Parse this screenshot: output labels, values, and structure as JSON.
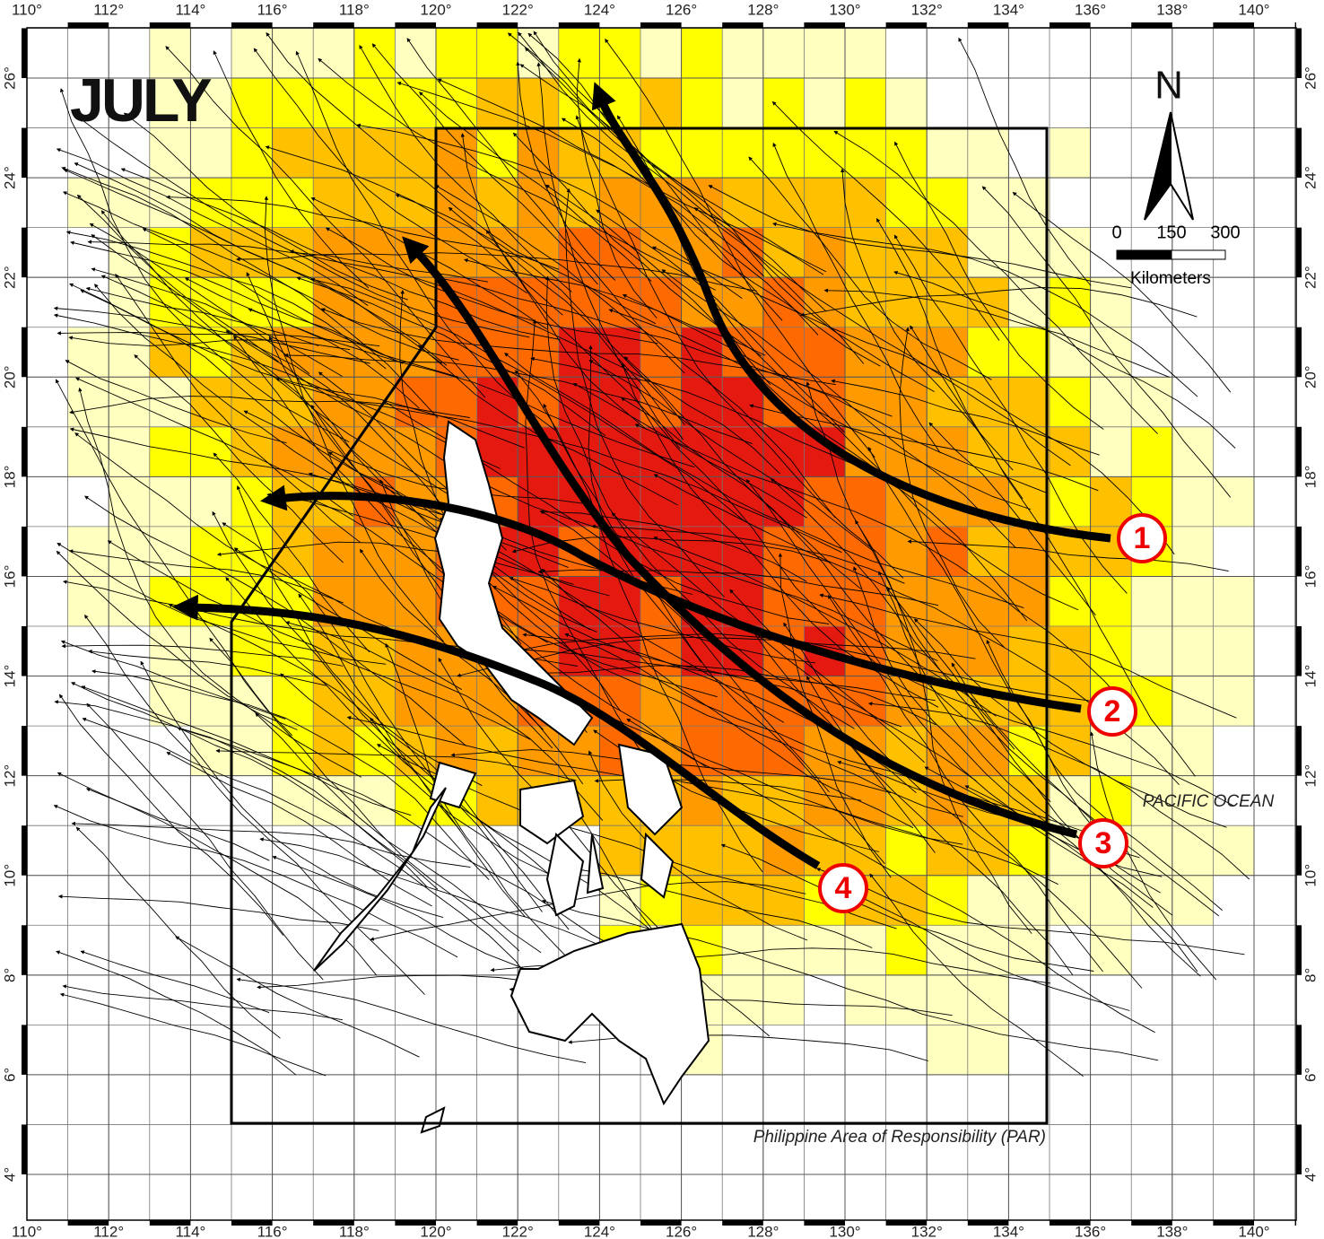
{
  "title": "JULY",
  "north": "N",
  "scale_bar": {
    "labels": [
      "0",
      "150",
      "300"
    ],
    "unit": "Kilometers"
  },
  "ocean_label": "PACIFIC OCEAN",
  "par_label": "Philippine Area of Responsibility (PAR)",
  "track_labels": [
    "1",
    "2",
    "3",
    "4"
  ],
  "lon_ticks": [
    {
      "value": 110,
      "label": "110°"
    },
    {
      "value": 112,
      "label": "112°"
    },
    {
      "value": 114,
      "label": "114°"
    },
    {
      "value": 116,
      "label": "116°"
    },
    {
      "value": 118,
      "label": "118°"
    },
    {
      "value": 120,
      "label": "120°"
    },
    {
      "value": 122,
      "label": "122°"
    },
    {
      "value": 124,
      "label": "124°"
    },
    {
      "value": 126,
      "label": "126°"
    },
    {
      "value": 128,
      "label": "128°"
    },
    {
      "value": 130,
      "label": "130°"
    },
    {
      "value": 132,
      "label": "132°"
    },
    {
      "value": 134,
      "label": "134°"
    },
    {
      "value": 136,
      "label": "136°"
    },
    {
      "value": 138,
      "label": "138°"
    },
    {
      "value": 140,
      "label": "140°"
    }
  ],
  "lat_ticks": [
    {
      "value": 4,
      "label": "4°"
    },
    {
      "value": 6,
      "label": "6°"
    },
    {
      "value": 8,
      "label": "8°"
    },
    {
      "value": 10,
      "label": "10°"
    },
    {
      "value": 12,
      "label": "12°"
    },
    {
      "value": 14,
      "label": "14°"
    },
    {
      "value": 16,
      "label": "16°"
    },
    {
      "value": 18,
      "label": "18°"
    },
    {
      "value": 20,
      "label": "20°"
    },
    {
      "value": 22,
      "label": "22°"
    },
    {
      "value": 24,
      "label": "24°"
    },
    {
      "value": 26,
      "label": "26°"
    }
  ]
}
